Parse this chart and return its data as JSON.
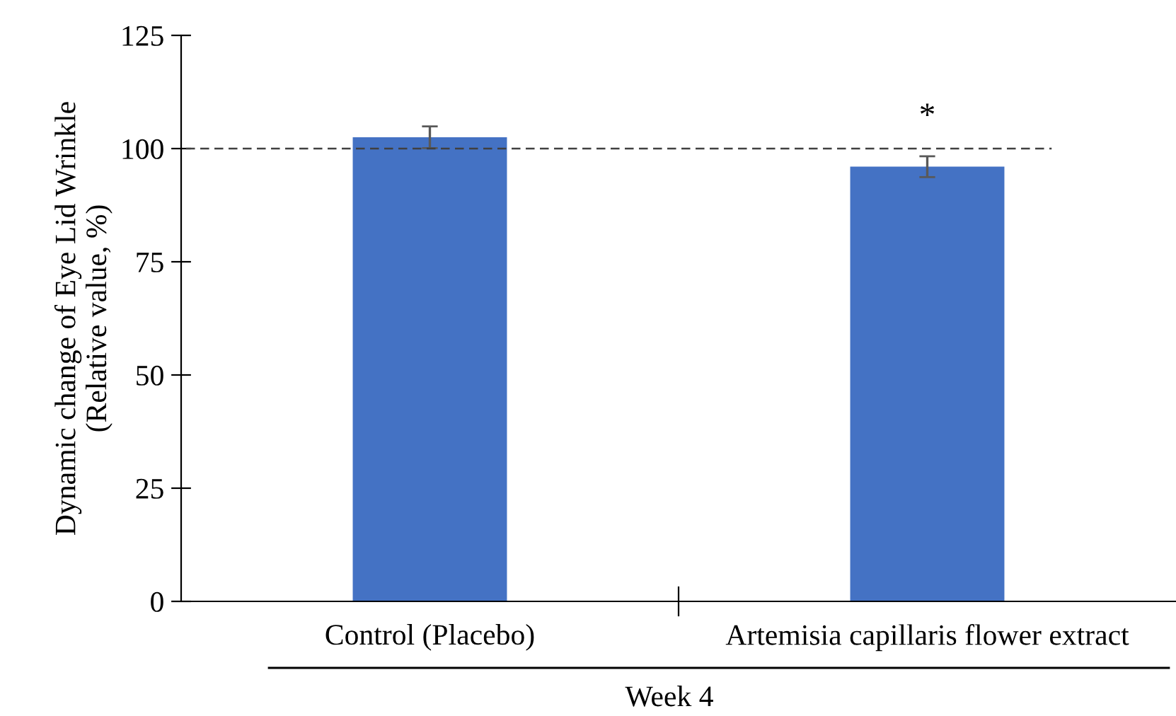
{
  "chart_data": {
    "type": "bar",
    "ylabel": "Dynamic change of Eye Lid Wrinkle\n(Relative value, %)",
    "xlabel": "Week 4",
    "categories": [
      "Control (Placebo)",
      "Artemisia capillaris flower extract"
    ],
    "values": [
      102.5,
      96
    ],
    "errors": [
      2.4,
      2.3
    ],
    "color": "#4472c4",
    "ylim": [
      0,
      125
    ],
    "yticks": [
      0,
      25,
      50,
      75,
      100,
      125
    ],
    "grid": false,
    "ref_lines": [
      {
        "axis": "y",
        "value": 100,
        "color": "#404040",
        "line_style": "dashed"
      }
    ],
    "annotations": [
      "*"
    ]
  }
}
